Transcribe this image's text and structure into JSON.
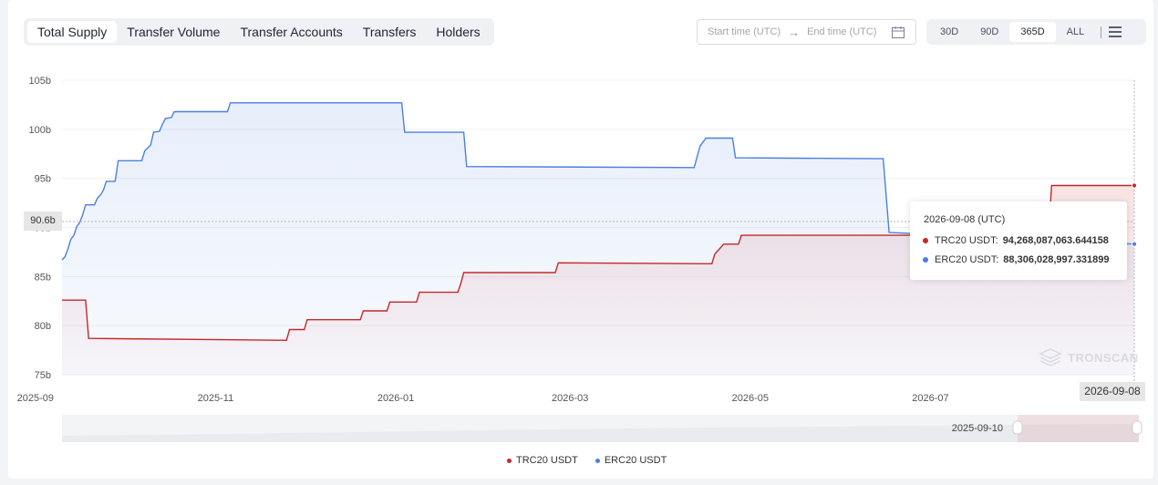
{
  "tabs": [
    {
      "label": "Total Supply",
      "active": true
    },
    {
      "label": "Transfer Volume",
      "active": false
    },
    {
      "label": "Transfer Accounts",
      "active": false
    },
    {
      "label": "Transfers",
      "active": false
    },
    {
      "label": "Holders",
      "active": false
    }
  ],
  "date_range": {
    "start_placeholder": "Start time (UTC)",
    "end_placeholder": "End time (UTC)",
    "icon": "calendar-icon"
  },
  "ranges": [
    {
      "label": "30D",
      "active": false
    },
    {
      "label": "90D",
      "active": false
    },
    {
      "label": "365D",
      "active": true
    },
    {
      "label": "ALL",
      "active": false
    }
  ],
  "menu_icon": "hamburger-menu-icon",
  "watermark": "TRONSCAN",
  "tooltip": {
    "date": "2026-09-08 (UTC)",
    "rows": [
      {
        "label": "TRC20 USDT:",
        "value": "94,268,087,063.644158",
        "color": "#c62828"
      },
      {
        "label": "ERC20 USDT:",
        "value": "88,306,028,997.331899",
        "color": "#4a7fe0"
      }
    ]
  },
  "crosshair": {
    "y_label": "90.6b",
    "x_label": "2026-09-08"
  },
  "zoom": {
    "start_label": "2025-09-10"
  },
  "chart_data": {
    "type": "line",
    "ylim": [
      75,
      105
    ],
    "y_unit": "b",
    "yticks": [
      "75b",
      "80b",
      "85b",
      "90b",
      "95b",
      "100b",
      "105b"
    ],
    "xticks": [
      "2025-09",
      "2025-11",
      "2026-01",
      "2026-03",
      "2026-05",
      "2026-07"
    ],
    "xrange": [
      "2025-09-10",
      "2026-09-08"
    ],
    "grid": true,
    "legend_position": "bottom",
    "series": [
      {
        "name": "TRC20 USDT",
        "color": "#c62828",
        "area": true,
        "points": [
          [
            "2025-09-10",
            82.6
          ],
          [
            "2025-09-18",
            82.6
          ],
          [
            "2025-09-19",
            78.7
          ],
          [
            "2025-11-25",
            78.5
          ],
          [
            "2025-11-26",
            79.6
          ],
          [
            "2025-12-01",
            79.6
          ],
          [
            "2025-12-02",
            80.6
          ],
          [
            "2025-12-20",
            80.6
          ],
          [
            "2025-12-21",
            81.5
          ],
          [
            "2025-12-29",
            81.5
          ],
          [
            "2025-12-30",
            82.4
          ],
          [
            "2026-01-08",
            82.4
          ],
          [
            "2026-01-09",
            83.4
          ],
          [
            "2026-01-22",
            83.4
          ],
          [
            "2026-01-23",
            84.3
          ],
          [
            "2026-01-24",
            85.4
          ],
          [
            "2026-02-24",
            85.4
          ],
          [
            "2026-02-25",
            86.4
          ],
          [
            "2026-04-18",
            86.3
          ],
          [
            "2026-04-19",
            87.3
          ],
          [
            "2026-04-22",
            88.3
          ],
          [
            "2026-04-27",
            88.3
          ],
          [
            "2026-04-28",
            89.2
          ],
          [
            "2026-08-10",
            89.2
          ],
          [
            "2026-08-11",
            94.27
          ],
          [
            "2026-09-08",
            94.27
          ]
        ]
      },
      {
        "name": "ERC20 USDT",
        "color": "#4a7fe0",
        "area": true,
        "points": [
          [
            "2025-09-10",
            86.7
          ],
          [
            "2025-09-11",
            87.0
          ],
          [
            "2025-09-12",
            87.8
          ],
          [
            "2025-09-13",
            88.8
          ],
          [
            "2025-09-14",
            89.2
          ],
          [
            "2025-09-15",
            90.1
          ],
          [
            "2025-09-16",
            90.5
          ],
          [
            "2025-09-17",
            91.3
          ],
          [
            "2025-09-18",
            92.3
          ],
          [
            "2025-09-21",
            92.3
          ],
          [
            "2025-09-22",
            93.0
          ],
          [
            "2025-09-23",
            93.3
          ],
          [
            "2025-09-24",
            93.8
          ],
          [
            "2025-09-25",
            94.7
          ],
          [
            "2025-09-28",
            94.7
          ],
          [
            "2025-09-29",
            96.8
          ],
          [
            "2025-10-07",
            96.8
          ],
          [
            "2025-10-08",
            97.8
          ],
          [
            "2025-10-10",
            98.4
          ],
          [
            "2025-10-11",
            99.7
          ],
          [
            "2025-10-13",
            99.8
          ],
          [
            "2025-10-14",
            100.5
          ],
          [
            "2025-10-15",
            101.1
          ],
          [
            "2025-10-17",
            101.2
          ],
          [
            "2025-10-18",
            101.8
          ],
          [
            "2025-11-05",
            101.8
          ],
          [
            "2025-11-06",
            102.7
          ],
          [
            "2025-12-27",
            102.7
          ],
          [
            "2026-01-03",
            102.7
          ],
          [
            "2026-01-04",
            99.7
          ],
          [
            "2026-01-24",
            99.7
          ],
          [
            "2026-01-25",
            96.2
          ],
          [
            "2026-04-12",
            96.1
          ],
          [
            "2026-04-13",
            97.2
          ],
          [
            "2026-04-14",
            98.3
          ],
          [
            "2026-04-16",
            99.1
          ],
          [
            "2026-04-25",
            99.1
          ],
          [
            "2026-04-26",
            97.1
          ],
          [
            "2026-06-15",
            97.0
          ],
          [
            "2026-06-17",
            89.5
          ],
          [
            "2026-09-08",
            88.31
          ]
        ]
      }
    ]
  },
  "legend": [
    {
      "label": "TRC20 USDT",
      "color": "#c62828"
    },
    {
      "label": "ERC20 USDT",
      "color": "#4a7fe0"
    }
  ]
}
